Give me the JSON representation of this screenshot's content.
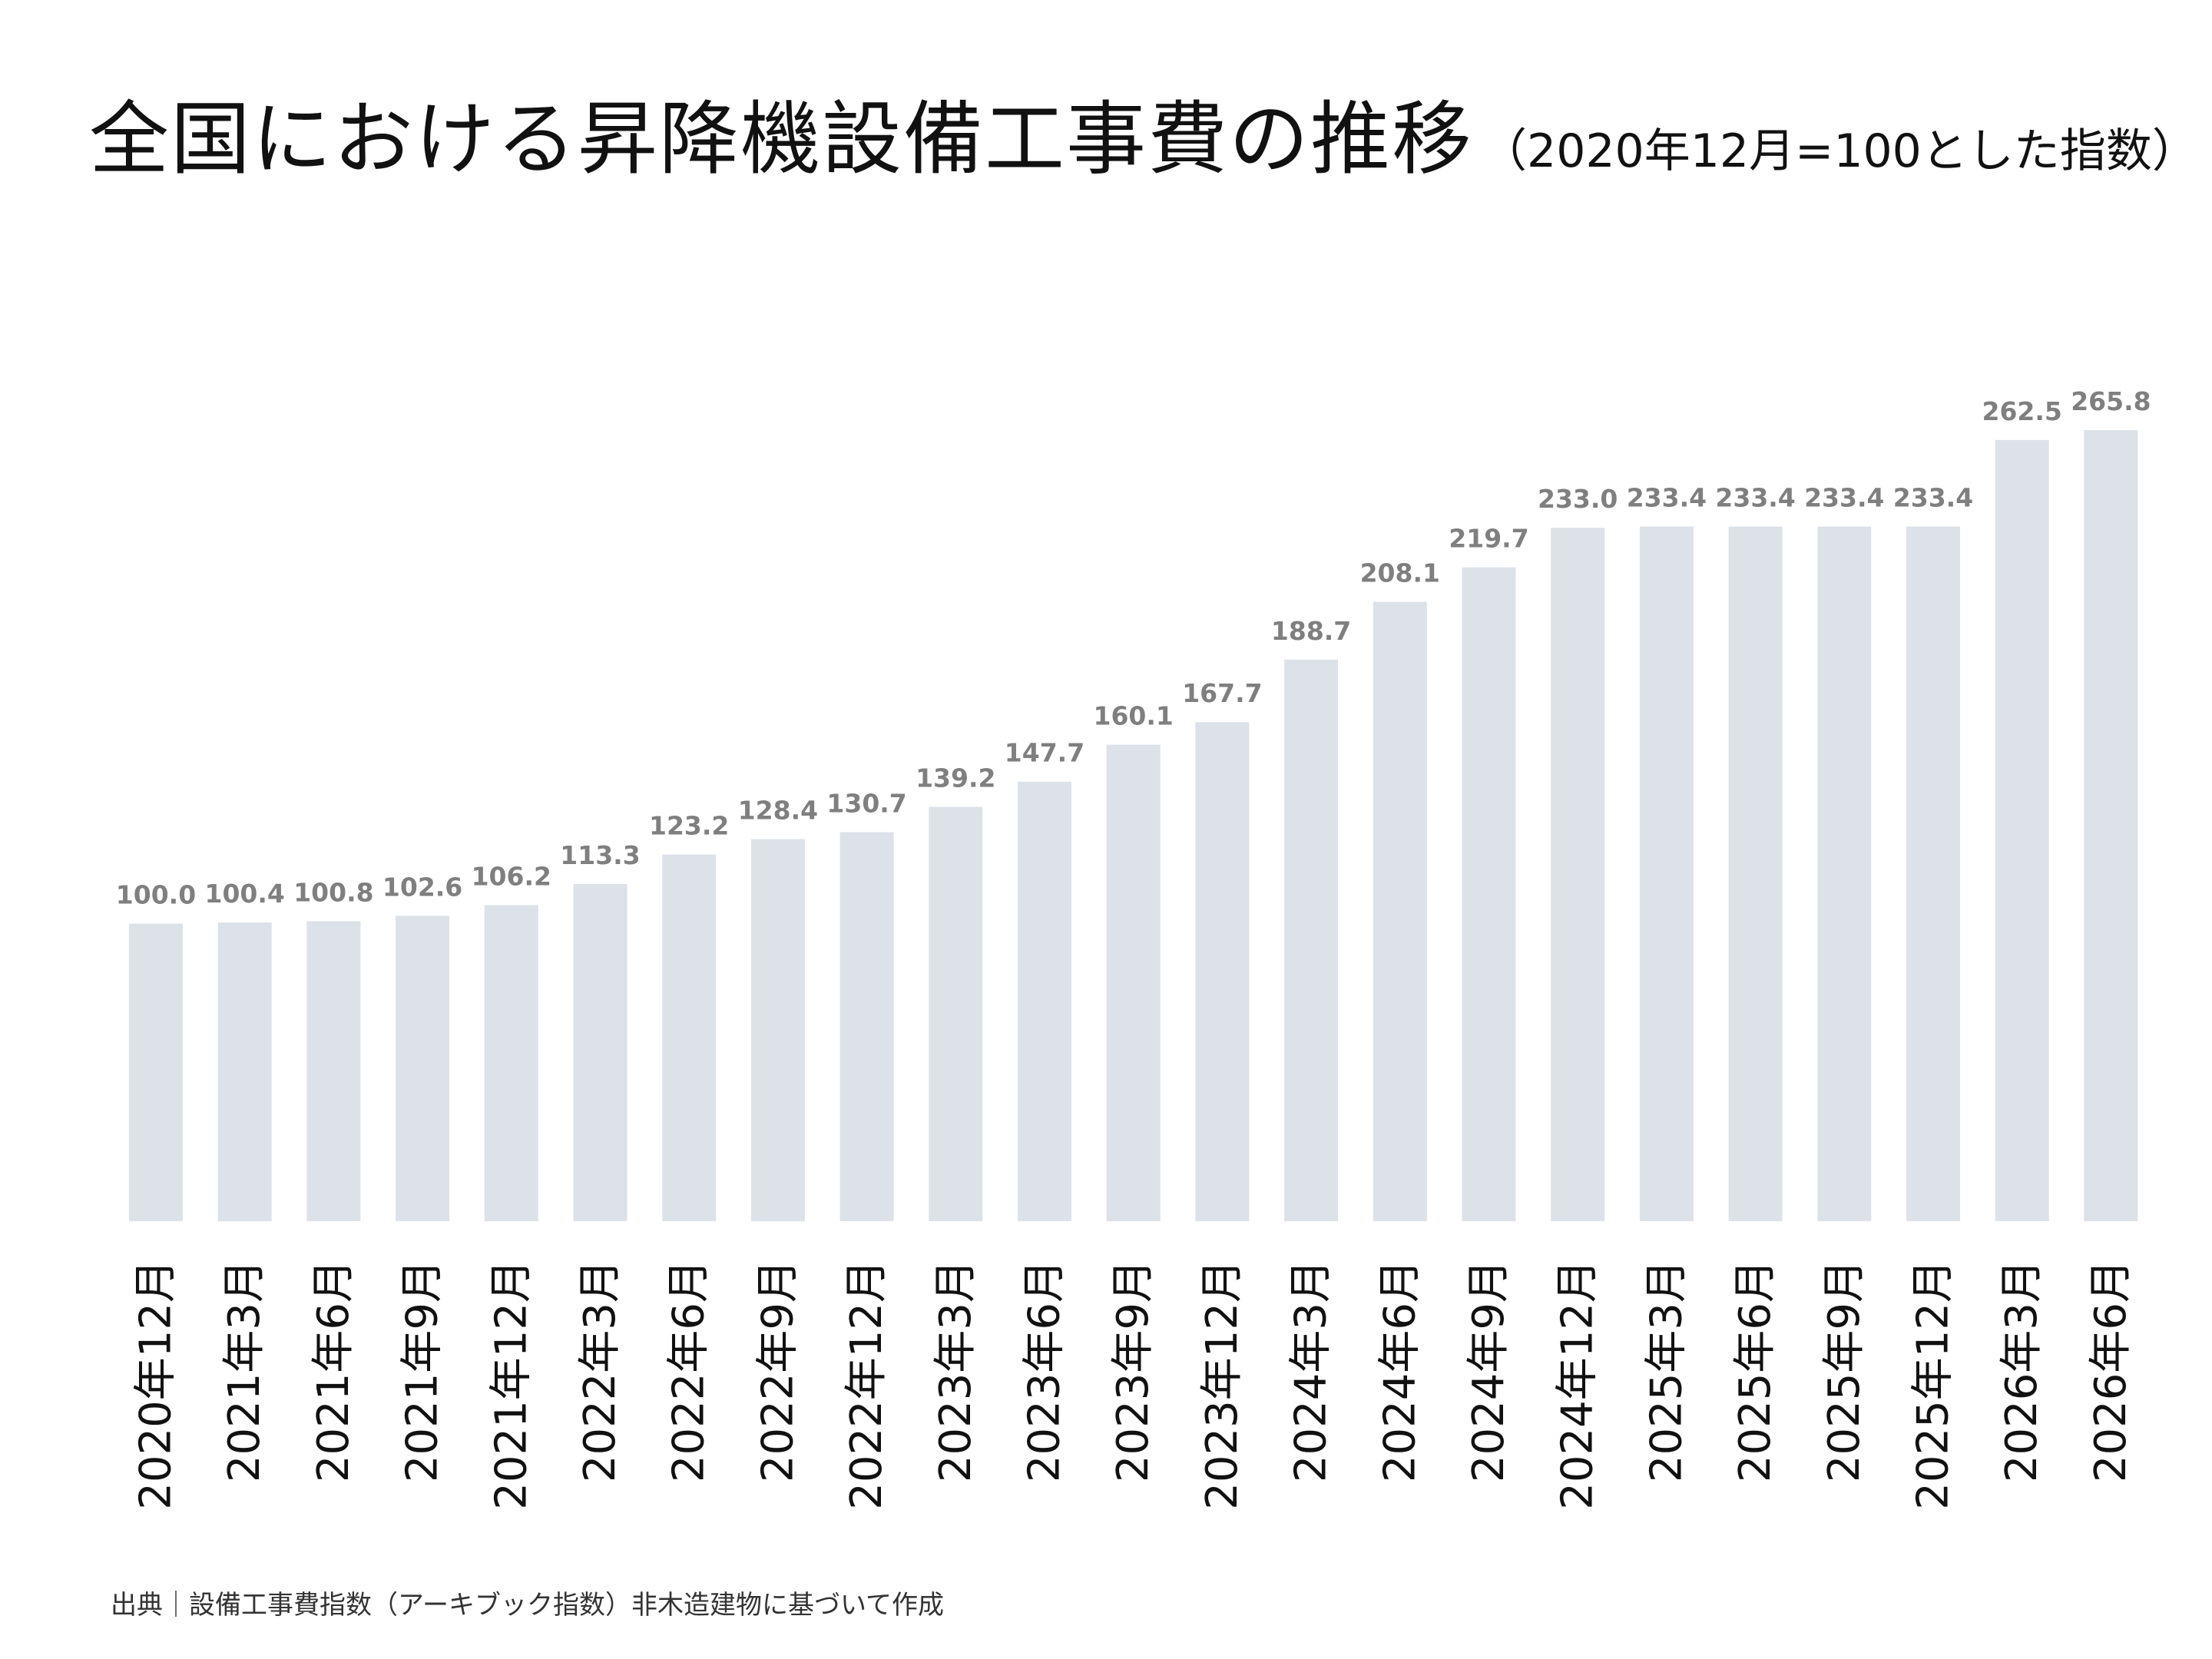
{
  "title": {
    "main": "全国における昇降機設備工事費の推移",
    "sub": "（2020年12月=100とした指数）"
  },
  "source": "出典｜設備工事費指数（アーキブック指数）非木造建物に基づいて作成",
  "colors": {
    "bar": "#dde1e8",
    "value_label": "#7f7f7f",
    "tick_label": "#111111",
    "title": "#111111"
  },
  "chart_data": {
    "type": "bar",
    "title": "全国における昇降機設備工事費の推移（2020年12月=100とした指数）",
    "xlabel": "",
    "ylabel": "",
    "grid": false,
    "legend": "none",
    "ylim": [
      0,
      275
    ],
    "categories": [
      "2020年12月",
      "2021年3月",
      "2021年6月",
      "2021年9月",
      "2021年12月",
      "2022年3月",
      "2022年6月",
      "2022年9月",
      "2022年12月",
      "2023年3月",
      "2023年6月",
      "2023年9月",
      "2023年12月",
      "2024年3月",
      "2024年6月",
      "2024年9月",
      "2024年12月",
      "2025年3月",
      "2025年6月",
      "2025年9月",
      "2025年12月",
      "2026年3月",
      "2026年6月"
    ],
    "values": [
      100.0,
      100.4,
      100.8,
      102.6,
      106.2,
      113.3,
      123.2,
      128.4,
      130.7,
      139.2,
      147.7,
      160.1,
      167.7,
      188.7,
      208.1,
      219.7,
      233.0,
      233.4,
      233.4,
      233.4,
      233.4,
      262.5,
      265.8
    ]
  }
}
